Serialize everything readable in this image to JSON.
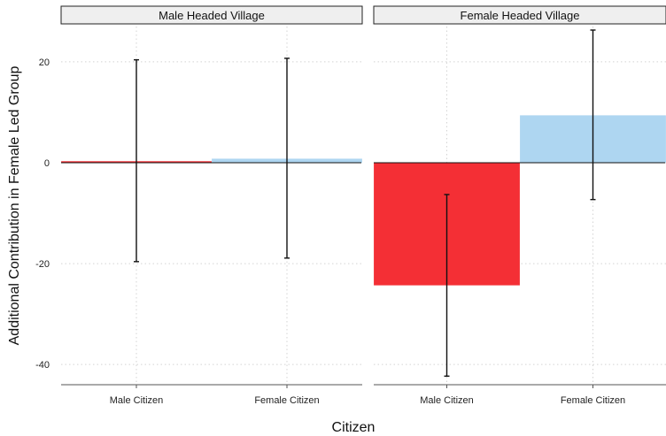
{
  "chart_data": {
    "type": "bar",
    "xlabel": "Citizen",
    "ylabel": "Additional Contribution in Female Led Group",
    "ylim": [
      -44,
      27
    ],
    "yticks": [
      -40,
      -20,
      0,
      20
    ],
    "categories": [
      "Male Citizen",
      "Female Citizen"
    ],
    "grid": true,
    "bar_colors": {
      "Male Citizen": "#f42f35",
      "Female Citizen": "#aed6f1"
    },
    "panels": [
      {
        "name": "Male Headed Village",
        "bars": [
          {
            "category": "Male Citizen",
            "value": 0.3,
            "ci_low": -19.6,
            "ci_high": 20.4
          },
          {
            "category": "Female Citizen",
            "value": 0.8,
            "ci_low": -18.9,
            "ci_high": 20.7
          }
        ]
      },
      {
        "name": "Female Headed Village",
        "bars": [
          {
            "category": "Male Citizen",
            "value": -24.3,
            "ci_low": -42.3,
            "ci_high": -6.3
          },
          {
            "category": "Female Citizen",
            "value": 9.4,
            "ci_low": -7.3,
            "ci_high": 26.3
          }
        ]
      }
    ]
  }
}
